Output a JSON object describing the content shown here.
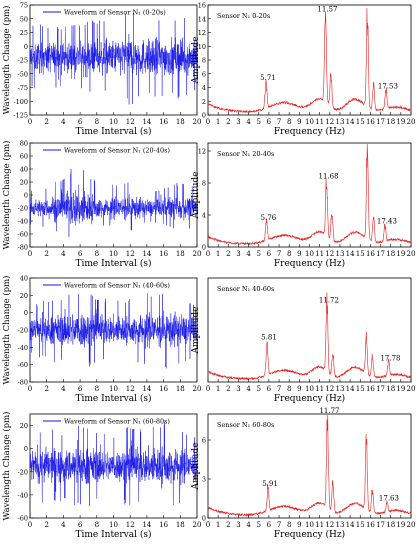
{
  "colors": {
    "waveform": "#1414e6",
    "spectrum": "#e62020",
    "axis": "#000000"
  },
  "chart_data": [
    {
      "type": "line",
      "domain": "time",
      "legend": "Waveform of Sensor N₁ (0-20s)",
      "xlabel": "Time Interval (s)",
      "ylabel": "Wavelength Change (pm)",
      "xlim": [
        0,
        20
      ],
      "ylim": [
        -125,
        75
      ],
      "xticks": [
        0,
        2,
        4,
        6,
        8,
        10,
        12,
        14,
        16,
        18,
        20
      ],
      "yticks": [
        75,
        50,
        25,
        0,
        -25,
        -50,
        -75,
        -100,
        -125
      ],
      "baseline": -20,
      "envelope": [
        {
          "t": 0,
          "min": -75,
          "max": 45
        },
        {
          "t": 2,
          "min": -85,
          "max": 40
        },
        {
          "t": 4,
          "min": -80,
          "max": 35
        },
        {
          "t": 6,
          "min": -90,
          "max": 40
        },
        {
          "t": 8,
          "min": -85,
          "max": 50
        },
        {
          "t": 10,
          "min": -90,
          "max": 45
        },
        {
          "t": 12,
          "min": -110,
          "max": 65
        },
        {
          "t": 14,
          "min": -95,
          "max": 45
        },
        {
          "t": 16,
          "min": -100,
          "max": 50
        },
        {
          "t": 18,
          "min": -95,
          "max": 55
        },
        {
          "t": 20,
          "min": -85,
          "max": 40
        }
      ]
    },
    {
      "type": "line",
      "domain": "frequency",
      "legend": "Sensor N₁ 0-20s",
      "xlabel": "Frequency (Hz)",
      "ylabel": "Amplitude",
      "xlim": [
        0,
        20
      ],
      "ylim": [
        0,
        16
      ],
      "xticks": [
        0,
        1,
        2,
        3,
        4,
        5,
        6,
        7,
        8,
        9,
        10,
        11,
        12,
        13,
        14,
        15,
        16,
        17,
        18,
        19,
        20
      ],
      "yticks": [
        0,
        2,
        4,
        6,
        8,
        10,
        12,
        14,
        16
      ],
      "peaks": [
        {
          "f": 5.71,
          "a": 4.2,
          "label": "5.71"
        },
        {
          "f": 11.57,
          "a": 14.2,
          "label": "11.57"
        },
        {
          "f": 12.1,
          "a": 5.5
        },
        {
          "f": 15.7,
          "a": 15.0
        },
        {
          "f": 16.3,
          "a": 4.0
        },
        {
          "f": 17.53,
          "a": 3.0,
          "label": "17.53"
        }
      ]
    },
    {
      "type": "line",
      "domain": "time",
      "legend": "Waveform of Sensor N₁ (20-40s)",
      "xlabel": "Time Interval (s)",
      "ylabel": "Wavelength Change (pm)",
      "xlim": [
        0,
        20
      ],
      "ylim": [
        -80,
        80
      ],
      "xticks": [
        0,
        2,
        4,
        6,
        8,
        10,
        12,
        14,
        16,
        18,
        20
      ],
      "yticks": [
        80,
        60,
        40,
        20,
        0,
        -20,
        -40,
        -60,
        -80
      ],
      "baseline": -20,
      "envelope": [
        {
          "t": 0,
          "min": -45,
          "max": 10
        },
        {
          "t": 2,
          "min": -50,
          "max": 15
        },
        {
          "t": 4,
          "min": -60,
          "max": 40
        },
        {
          "t": 5.5,
          "min": -70,
          "max": 70
        },
        {
          "t": 7,
          "min": -65,
          "max": 45
        },
        {
          "t": 9,
          "min": -45,
          "max": 15
        },
        {
          "t": 10.5,
          "min": -50,
          "max": 30
        },
        {
          "t": 12,
          "min": -55,
          "max": 35
        },
        {
          "t": 14,
          "min": -40,
          "max": 15
        },
        {
          "t": 16,
          "min": -45,
          "max": 20
        },
        {
          "t": 18,
          "min": -55,
          "max": 25
        },
        {
          "t": 20,
          "min": -50,
          "max": 20
        }
      ]
    },
    {
      "type": "line",
      "domain": "frequency",
      "legend": "Sensor N₁ 20-40s",
      "xlabel": "Frequency (Hz)",
      "ylabel": "Amplitude",
      "xlim": [
        0,
        20
      ],
      "ylim": [
        0,
        13
      ],
      "xticks": [
        0,
        1,
        2,
        3,
        4,
        5,
        6,
        7,
        8,
        9,
        10,
        11,
        12,
        13,
        14,
        15,
        16,
        17,
        18,
        19,
        20
      ],
      "yticks": [
        0,
        4,
        8,
        12
      ],
      "peaks": [
        {
          "f": 5.76,
          "a": 2.6,
          "label": "5.76"
        },
        {
          "f": 11.68,
          "a": 7.8,
          "label": "11.68"
        },
        {
          "f": 12.2,
          "a": 4.0
        },
        {
          "f": 15.7,
          "a": 12.5
        },
        {
          "f": 16.3,
          "a": 3.5
        },
        {
          "f": 17.43,
          "a": 2.2,
          "label": "17.43"
        }
      ]
    },
    {
      "type": "line",
      "domain": "time",
      "legend": "Waveform of Sensor N₁ (40-60s)",
      "xlabel": "Time Interval (s)",
      "ylabel": "Wavelength Change (pm)",
      "xlim": [
        0,
        20
      ],
      "ylim": [
        -80,
        40
      ],
      "xticks": [
        0,
        2,
        4,
        6,
        8,
        10,
        12,
        14,
        16,
        18,
        20
      ],
      "yticks": [
        40,
        20,
        0,
        -20,
        -40,
        -60,
        -80
      ],
      "baseline": -20,
      "envelope": [
        {
          "t": 0,
          "min": -50,
          "max": 10
        },
        {
          "t": 2,
          "min": -55,
          "max": 15
        },
        {
          "t": 4,
          "min": -60,
          "max": 20
        },
        {
          "t": 6,
          "min": -70,
          "max": 25
        },
        {
          "t": 8,
          "min": -60,
          "max": 20
        },
        {
          "t": 10,
          "min": -55,
          "max": 15
        },
        {
          "t": 12,
          "min": -55,
          "max": 20
        },
        {
          "t": 14,
          "min": -60,
          "max": 25
        },
        {
          "t": 16,
          "min": -65,
          "max": 30
        },
        {
          "t": 18,
          "min": -60,
          "max": 20
        },
        {
          "t": 20,
          "min": -50,
          "max": 15
        }
      ]
    },
    {
      "type": "line",
      "domain": "frequency",
      "legend": "Sensor N₁ 40-60s",
      "xlabel": "Frequency (Hz)",
      "ylabel": "Amplitude",
      "xlim": [
        0,
        20
      ],
      "ylim": [
        0,
        12
      ],
      "xticks": [
        0,
        1,
        2,
        3,
        4,
        5,
        6,
        7,
        8,
        9,
        10,
        11,
        12,
        13,
        14,
        15,
        16,
        17,
        18,
        19,
        20
      ],
      "yticks": [],
      "peaks": [
        {
          "f": 5.81,
          "a": 4.2,
          "label": "5.81"
        },
        {
          "f": 11.72,
          "a": 8.5,
          "label": "11.72"
        },
        {
          "f": 12.3,
          "a": 3.0
        },
        {
          "f": 15.6,
          "a": 4.5
        },
        {
          "f": 16.2,
          "a": 2.5
        },
        {
          "f": 17.78,
          "a": 1.8,
          "label": "17.78"
        }
      ]
    },
    {
      "type": "line",
      "domain": "time",
      "legend": "Waveform of Sensor N₁ (60-80s)",
      "xlabel": "Time Interval (s)",
      "ylabel": "Wavelength Change (pm)",
      "xlim": [
        0,
        20
      ],
      "ylim": [
        -60,
        30
      ],
      "xticks": [
        0,
        2,
        4,
        6,
        8,
        10,
        12,
        14,
        16,
        18,
        20
      ],
      "yticks": [
        20,
        0,
        -20,
        -40,
        -60
      ],
      "baseline": -15,
      "envelope": [
        {
          "t": 0,
          "min": -45,
          "max": 15
        },
        {
          "t": 2,
          "min": -50,
          "max": 20
        },
        {
          "t": 4,
          "min": -45,
          "max": 15
        },
        {
          "t": 6,
          "min": -55,
          "max": 20
        },
        {
          "t": 8,
          "min": -50,
          "max": 15
        },
        {
          "t": 10,
          "min": -45,
          "max": 10
        },
        {
          "t": 12,
          "min": -55,
          "max": 20
        },
        {
          "t": 14,
          "min": -50,
          "max": 15
        },
        {
          "t": 16,
          "min": -55,
          "max": 25
        },
        {
          "t": 18,
          "min": -50,
          "max": 15
        },
        {
          "t": 20,
          "min": -45,
          "max": 10
        }
      ]
    },
    {
      "type": "line",
      "domain": "frequency",
      "legend": "Sensor N₁ 60-80s",
      "xlabel": "Frequency (Hz)",
      "ylabel": "Amplitude",
      "xlim": [
        0,
        20
      ],
      "ylim": [
        0,
        8
      ],
      "xticks": [
        0,
        1,
        2,
        3,
        4,
        5,
        6,
        7,
        8,
        9,
        10,
        11,
        12,
        13,
        14,
        15,
        16,
        17,
        18,
        19,
        20
      ],
      "yticks": [
        0,
        3,
        6
      ],
      "peaks": [
        {
          "f": 5.91,
          "a": 2.0,
          "label": "5.91"
        },
        {
          "f": 11.77,
          "a": 7.6,
          "label": "11.77"
        },
        {
          "f": 12.3,
          "a": 2.5
        },
        {
          "f": 15.6,
          "a": 5.8
        },
        {
          "f": 16.2,
          "a": 2.0
        },
        {
          "f": 17.63,
          "a": 0.9,
          "label": "17.63"
        }
      ]
    }
  ]
}
